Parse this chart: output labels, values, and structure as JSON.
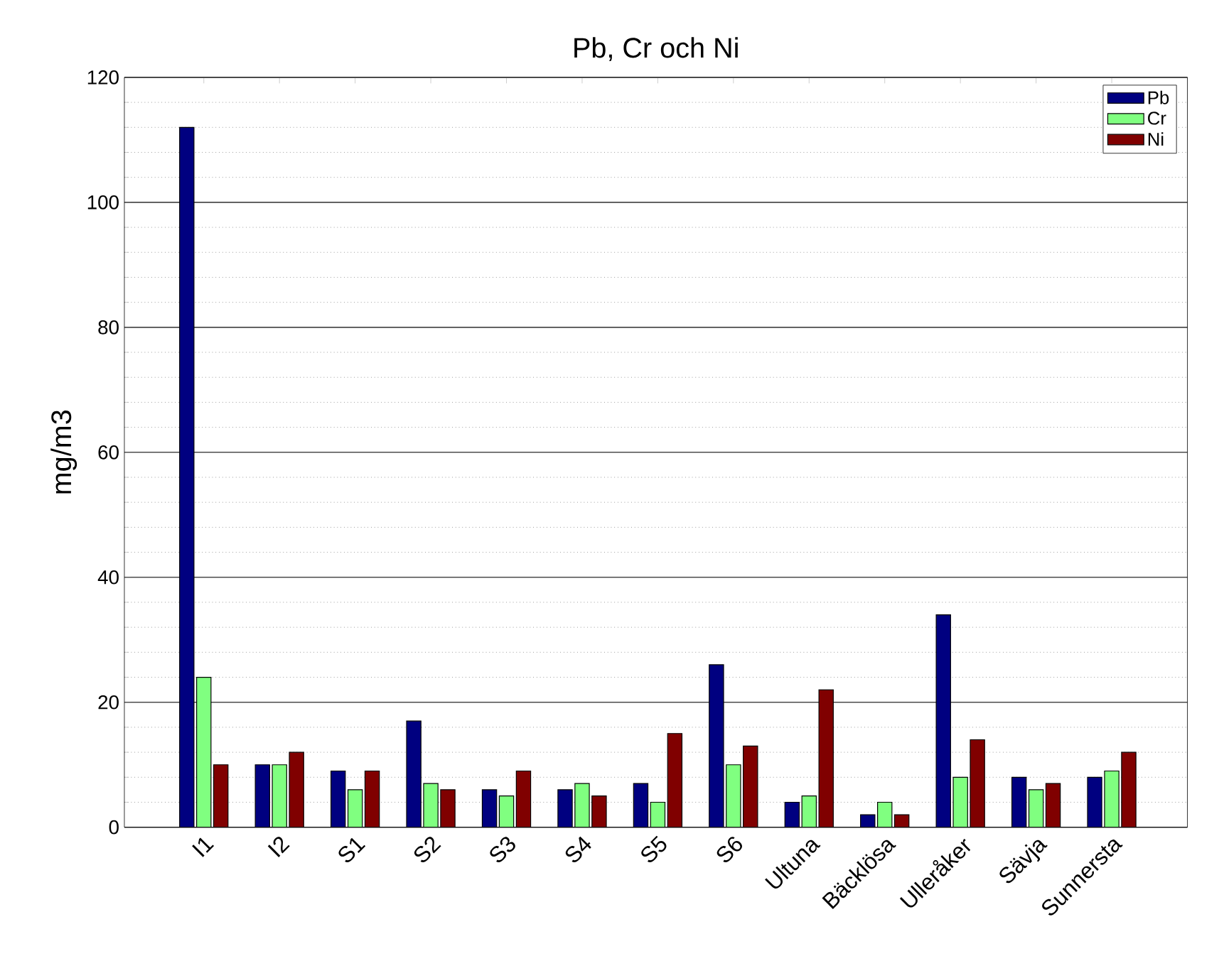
{
  "chart_data": {
    "type": "bar",
    "title": "Pb, Cr och Ni",
    "ylabel": "mg/m3",
    "categories": [
      "I1",
      "I2",
      "S1",
      "S2",
      "S3",
      "S4",
      "S5",
      "S6",
      "Ultuna",
      "Bäcklösa",
      "Ulleråker",
      "Sävja",
      "Sunnersta"
    ],
    "series": [
      {
        "name": "Pb",
        "color": "#000080",
        "values": [
          112,
          10,
          9,
          17,
          6,
          6,
          7,
          26,
          4,
          2,
          34,
          8,
          8
        ]
      },
      {
        "name": "Cr",
        "color": "#80ff80",
        "values": [
          24,
          10,
          6,
          7,
          5,
          7,
          4,
          10,
          5,
          4,
          8,
          6,
          9
        ]
      },
      {
        "name": "Ni",
        "color": "#800000",
        "values": [
          10,
          12,
          9,
          6,
          9,
          5,
          15,
          13,
          22,
          2,
          14,
          7,
          12
        ]
      }
    ],
    "ylim": [
      0,
      120
    ],
    "yticks": [
      0,
      20,
      40,
      60,
      80,
      100,
      120
    ],
    "grid": "y",
    "legend": "top right"
  }
}
